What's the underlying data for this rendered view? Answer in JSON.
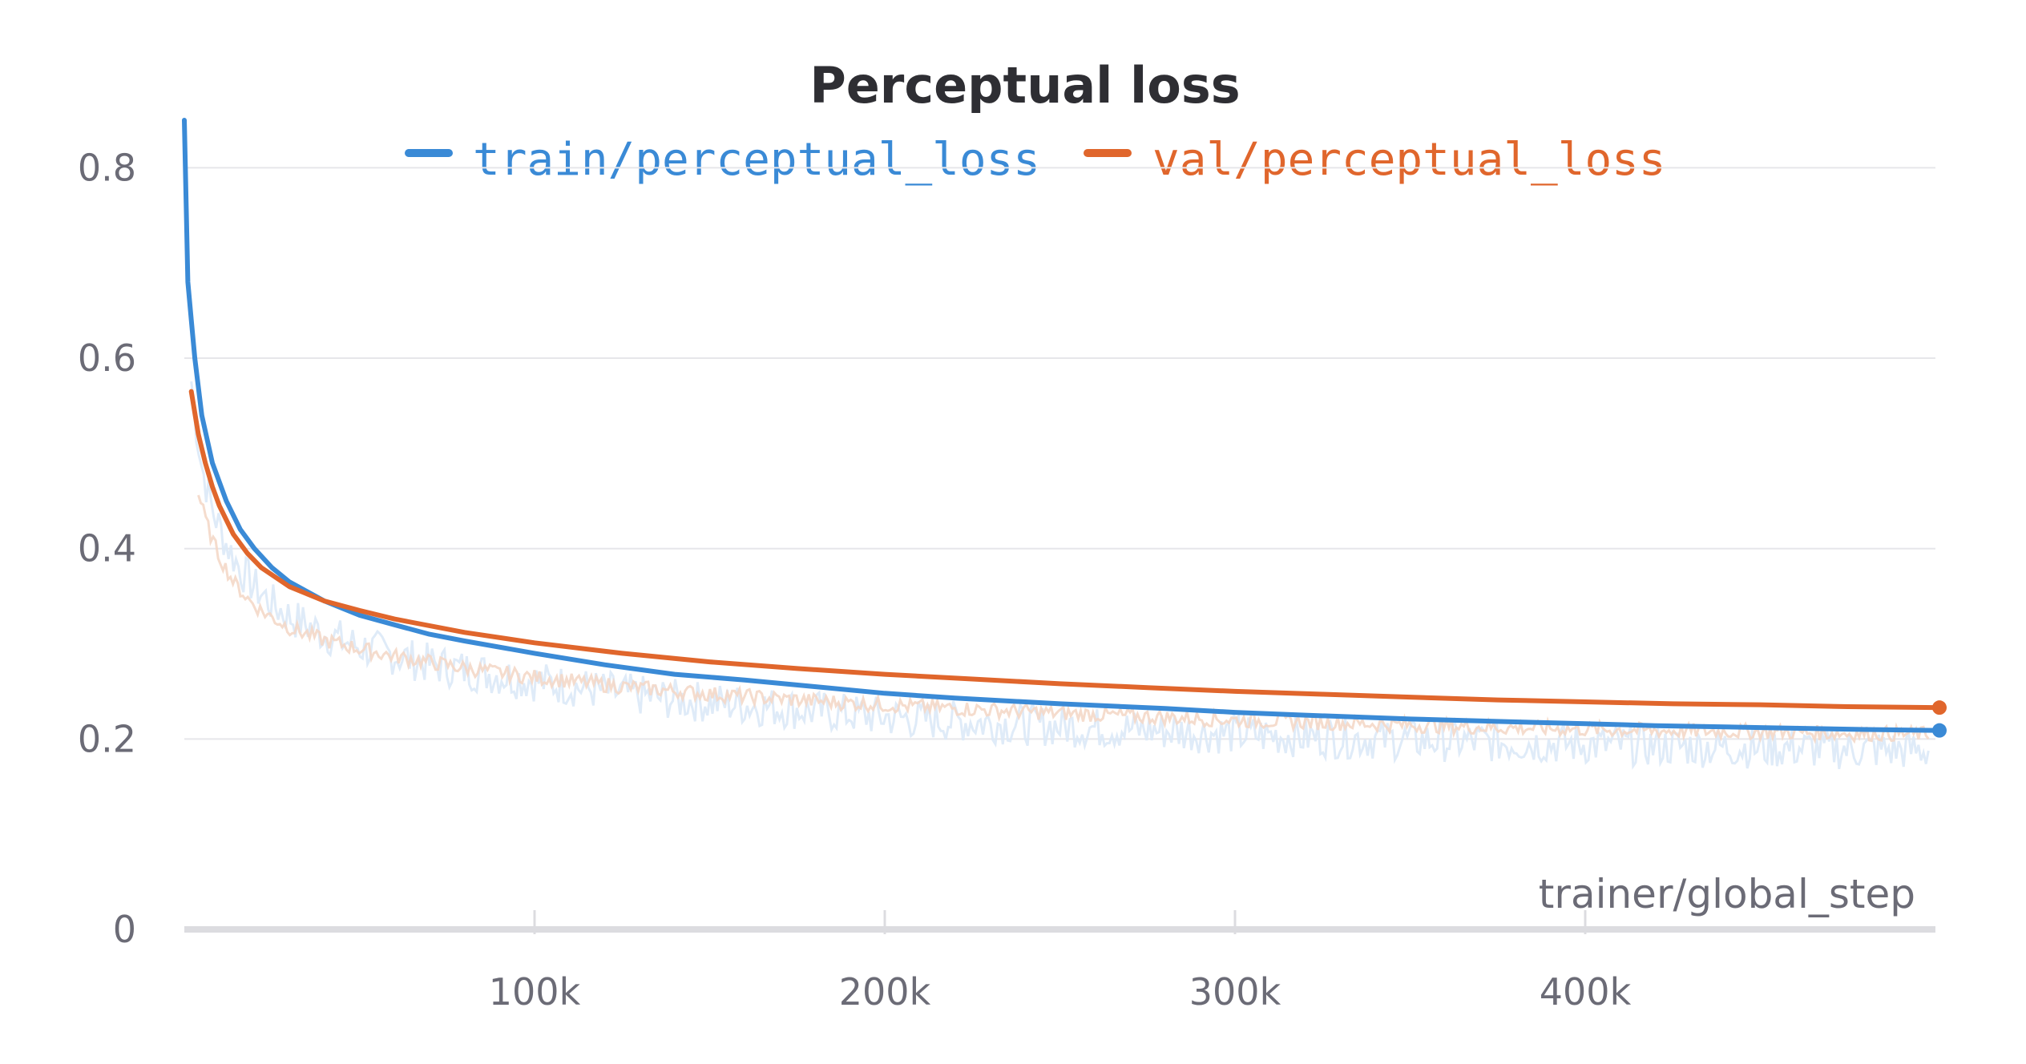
{
  "chart_data": {
    "type": "line",
    "title": "Perceptual loss",
    "xlabel": "trainer/global_step",
    "ylabel": "",
    "xlim": [
      0,
      500000
    ],
    "ylim": [
      0,
      0.85
    ],
    "y_ticks": [
      {
        "value": 0,
        "label": "0"
      },
      {
        "value": 0.2,
        "label": "0.2"
      },
      {
        "value": 0.4,
        "label": "0.4"
      },
      {
        "value": 0.6,
        "label": "0.6"
      },
      {
        "value": 0.8,
        "label": "0.8"
      }
    ],
    "x_ticks": [
      {
        "value": 100000,
        "label": "100k"
      },
      {
        "value": 200000,
        "label": "200k"
      },
      {
        "value": 300000,
        "label": "300k"
      },
      {
        "value": 400000,
        "label": "400k"
      }
    ],
    "grid": "horizontal",
    "legend_position": "top-center",
    "series": [
      {
        "name": "train/perceptual_loss",
        "color": "#3a8ad6",
        "raw_color": "#dbe9f7",
        "x": [
          0,
          1000,
          2000,
          3000,
          5000,
          8000,
          12000,
          16000,
          20000,
          25000,
          30000,
          40000,
          50000,
          60000,
          70000,
          80000,
          100000,
          120000,
          140000,
          160000,
          180000,
          200000,
          220000,
          250000,
          280000,
          300000,
          320000,
          350000,
          380000,
          400000,
          420000,
          450000,
          480000,
          500000
        ],
        "y": [
          0.85,
          0.68,
          0.64,
          0.6,
          0.54,
          0.49,
          0.45,
          0.42,
          0.4,
          0.38,
          0.365,
          0.345,
          0.33,
          0.32,
          0.31,
          0.303,
          0.29,
          0.278,
          0.268,
          0.262,
          0.255,
          0.248,
          0.243,
          0.237,
          0.232,
          0.228,
          0.225,
          0.221,
          0.218,
          0.216,
          0.214,
          0.212,
          0.21,
          0.209
        ]
      },
      {
        "name": "val/perceptual_loss",
        "color": "#e0662c",
        "raw_color": "#f4d8c8",
        "x": [
          2000,
          4000,
          6000,
          8000,
          10000,
          14000,
          18000,
          22000,
          30000,
          40000,
          50000,
          60000,
          80000,
          100000,
          125000,
          150000,
          175000,
          200000,
          225000,
          250000,
          275000,
          300000,
          325000,
          350000,
          375000,
          400000,
          425000,
          450000,
          475000,
          500000
        ],
        "y": [
          0.565,
          0.52,
          0.49,
          0.465,
          0.445,
          0.415,
          0.395,
          0.38,
          0.36,
          0.345,
          0.335,
          0.326,
          0.312,
          0.301,
          0.29,
          0.281,
          0.274,
          0.268,
          0.263,
          0.258,
          0.254,
          0.25,
          0.247,
          0.244,
          0.241,
          0.239,
          0.237,
          0.236,
          0.234,
          0.233
        ]
      }
    ]
  }
}
